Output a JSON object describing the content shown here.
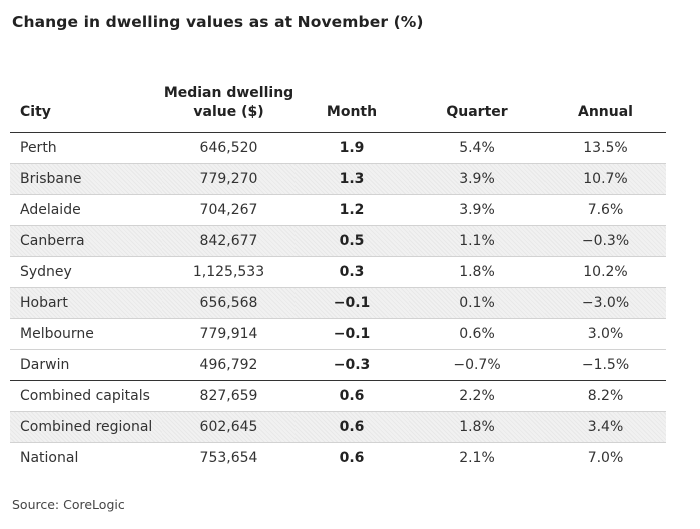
{
  "chart_data": {
    "type": "table",
    "title": "Change in dwelling values as at November (%)",
    "columns": [
      "City",
      "Median dwelling value ($)",
      "Month",
      "Quarter",
      "Annual"
    ],
    "rows": [
      {
        "city": "Perth",
        "value": "646,520",
        "month": "1.9",
        "quarter": "5.4%",
        "annual": "13.5%"
      },
      {
        "city": "Brisbane",
        "value": "779,270",
        "month": "1.3",
        "quarter": "3.9%",
        "annual": "10.7%"
      },
      {
        "city": "Adelaide",
        "value": "704,267",
        "month": "1.2",
        "quarter": "3.9%",
        "annual": "7.6%"
      },
      {
        "city": "Canberra",
        "value": "842,677",
        "month": "0.5",
        "quarter": "1.1%",
        "annual": "−0.3%"
      },
      {
        "city": "Sydney",
        "value": "1,125,533",
        "month": "0.3",
        "quarter": "1.8%",
        "annual": "10.2%"
      },
      {
        "city": "Hobart",
        "value": "656,568",
        "month": "−0.1",
        "quarter": "0.1%",
        "annual": "−3.0%"
      },
      {
        "city": "Melbourne",
        "value": "779,914",
        "month": "−0.1",
        "quarter": "0.6%",
        "annual": "3.0%"
      },
      {
        "city": "Darwin",
        "value": "496,792",
        "month": "−0.3",
        "quarter": "−0.7%",
        "annual": "−1.5%"
      },
      {
        "city": "Combined capitals",
        "value": "827,659",
        "month": "0.6",
        "quarter": "2.2%",
        "annual": "8.2%"
      },
      {
        "city": "Combined regional",
        "value": "602,645",
        "month": "0.6",
        "quarter": "1.8%",
        "annual": "3.4%"
      },
      {
        "city": "National",
        "value": "753,654",
        "month": "0.6",
        "quarter": "2.1%",
        "annual": "7.0%"
      }
    ],
    "source": "Source: CoreLogic"
  }
}
